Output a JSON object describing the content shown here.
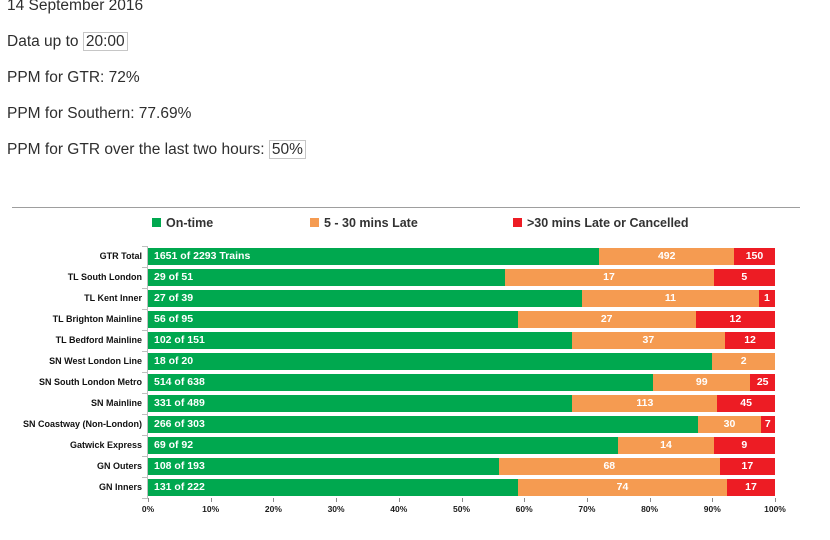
{
  "report": {
    "date_line": "14 September 2016",
    "data_up_to_prefix": "Data up to ",
    "data_up_to_value": "20:00",
    "ppm_gtr": "PPM for GTR: 72%",
    "ppm_southern": "PPM for Southern: 77.69%",
    "ppm_gtr_2h_prefix": "PPM for GTR over the last two hours: ",
    "ppm_gtr_2h_value": "50%"
  },
  "chart_data": {
    "type": "bar",
    "orientation": "horizontal",
    "stacked": true,
    "percent_scaled": true,
    "legend_position": "top",
    "title": "",
    "xlabel": "",
    "ylabel": "",
    "xlim": [
      0,
      100
    ],
    "x_tick_labels": [
      "0%",
      "10%",
      "20%",
      "30%",
      "40%",
      "50%",
      "60%",
      "70%",
      "80%",
      "90%",
      "100%"
    ],
    "categories": [
      "GTR Total",
      "TL South London",
      "TL Kent Inner",
      "TL Brighton Mainline",
      "TL Bedford Mainline",
      "SN West London Line",
      "SN South London Metro",
      "SN Mainline",
      "SN Coastway (Non-London)",
      "Gatwick Express",
      "GN Outers",
      "GN Inners"
    ],
    "totals": [
      2293,
      51,
      39,
      95,
      151,
      20,
      638,
      489,
      303,
      92,
      193,
      222
    ],
    "series": [
      {
        "name": "On-time",
        "color": "#00A84F",
        "values": [
          1651,
          29,
          27,
          56,
          102,
          18,
          514,
          331,
          266,
          69,
          108,
          131
        ]
      },
      {
        "name": "5 - 30 mins Late",
        "color": "#F59B51",
        "values": [
          492,
          17,
          11,
          27,
          37,
          2,
          99,
          113,
          30,
          14,
          68,
          74
        ]
      },
      {
        "name": ">30 mins Late or Cancelled",
        "color": "#ED1C24",
        "values": [
          150,
          5,
          1,
          12,
          12,
          0,
          25,
          45,
          7,
          9,
          17,
          17
        ]
      }
    ],
    "on_time_bar_labels": [
      "1651 of 2293 Trains",
      "29 of 51",
      "27 of 39",
      "56 of 95",
      "102 of 151",
      "18 of 20",
      "514 of 638",
      "331 of 489",
      "266 of 303",
      "69 of 92",
      "108 of 193",
      "131 of 222"
    ],
    "legend_x_positions": [
      152,
      310,
      513
    ]
  }
}
